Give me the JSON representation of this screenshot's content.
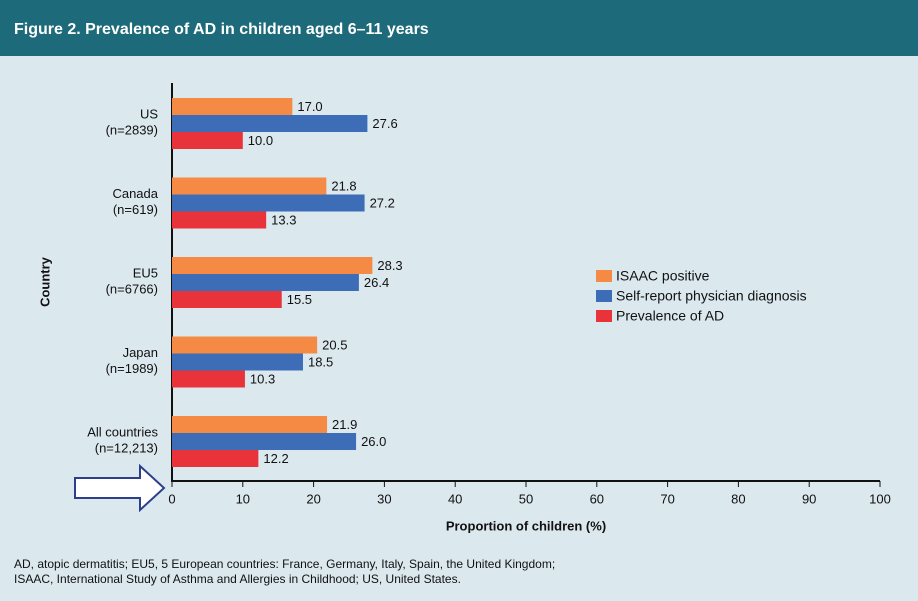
{
  "chart_data": {
    "type": "hbar",
    "title": "Figure 2. Prevalence of AD in children aged 6–11 years",
    "categories": [
      "US",
      "Canada",
      "EU5",
      "Japan",
      "All countries"
    ],
    "category_notes": [
      "(n=2839)",
      "(n=619)",
      "(n=6766)",
      "(n=1989)",
      "(n=12,213)"
    ],
    "series": [
      {
        "name": "ISAAC positive",
        "color": "#f58a45",
        "values": [
          17,
          21.8,
          28.3,
          20.5,
          21.9
        ],
        "value_labels": [
          "17.0",
          "21.8",
          "28.3",
          "20.5",
          "21.9"
        ]
      },
      {
        "name": "Self-report physician diagnosis",
        "color": "#3e6db8",
        "values": [
          27.6,
          27.2,
          26.4,
          18.5,
          26
        ],
        "value_labels": [
          "27.6",
          "27.2",
          "26.4",
          "18.5",
          "26.0"
        ]
      },
      {
        "name": "Prevalence of AD",
        "color": "#e8333a",
        "values": [
          10,
          13.3,
          15.5,
          10.3,
          12.2
        ],
        "value_labels": [
          "10.0",
          "13.3",
          "15.5",
          "10.3",
          "12.2"
        ]
      }
    ],
    "xlabel": "Proportion of children (%)",
    "ylabel": "Country",
    "xlim": [
      0,
      100
    ],
    "xticks": [
      0,
      10,
      20,
      30,
      40,
      50,
      60,
      70,
      80,
      90,
      100
    ],
    "legend": "right",
    "footnote": [
      "AD, atopic dermatitis; EU5, 5 European countries: France, Germany, Italy, Spain, the United Kingdom;",
      "ISAAC, International Study of Asthma and Allergies in Childhood; US, United States."
    ]
  }
}
